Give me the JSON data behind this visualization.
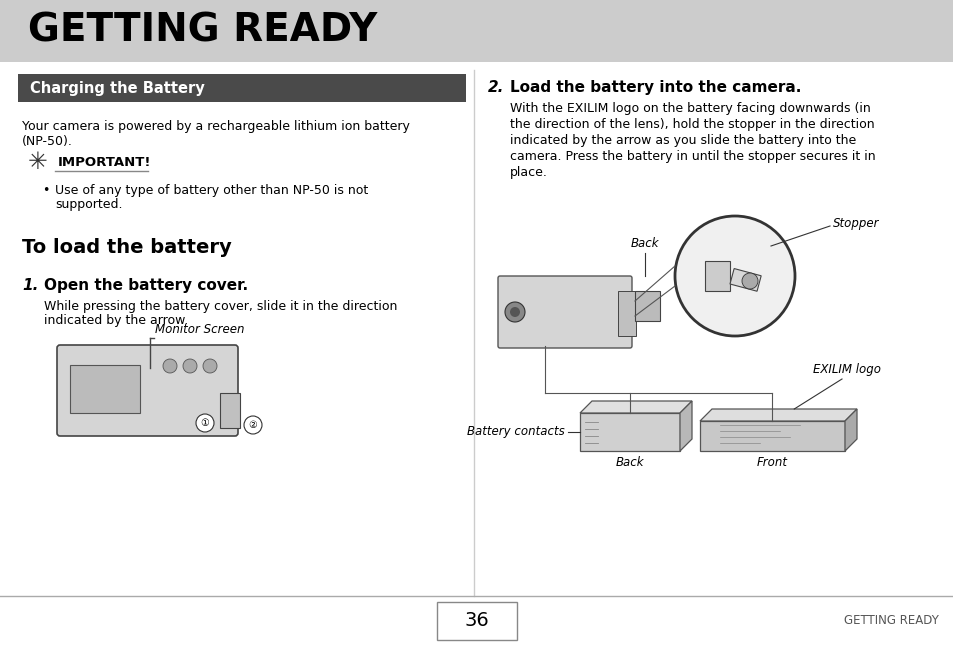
{
  "bg_color": "#ffffff",
  "header_bg": "#cccccc",
  "header_text": "GETTING READY",
  "section_bar_bg": "#4a4a4a",
  "section_bar_text": "Charging the Battery",
  "section_bar_text_color": "#ffffff",
  "footer_page": "36",
  "footer_right": "GETTING READY",
  "footer_line_color": "#aaaaaa",
  "divider_color": "#cccccc",
  "label_stopper": "Stopper",
  "label_back_top": "Back",
  "label_exilim": "EXILIM logo",
  "label_battery_contacts": "Battery contacts",
  "label_back_bottom": "Back",
  "label_front": "Front",
  "label_monitor": "Monitor Screen"
}
